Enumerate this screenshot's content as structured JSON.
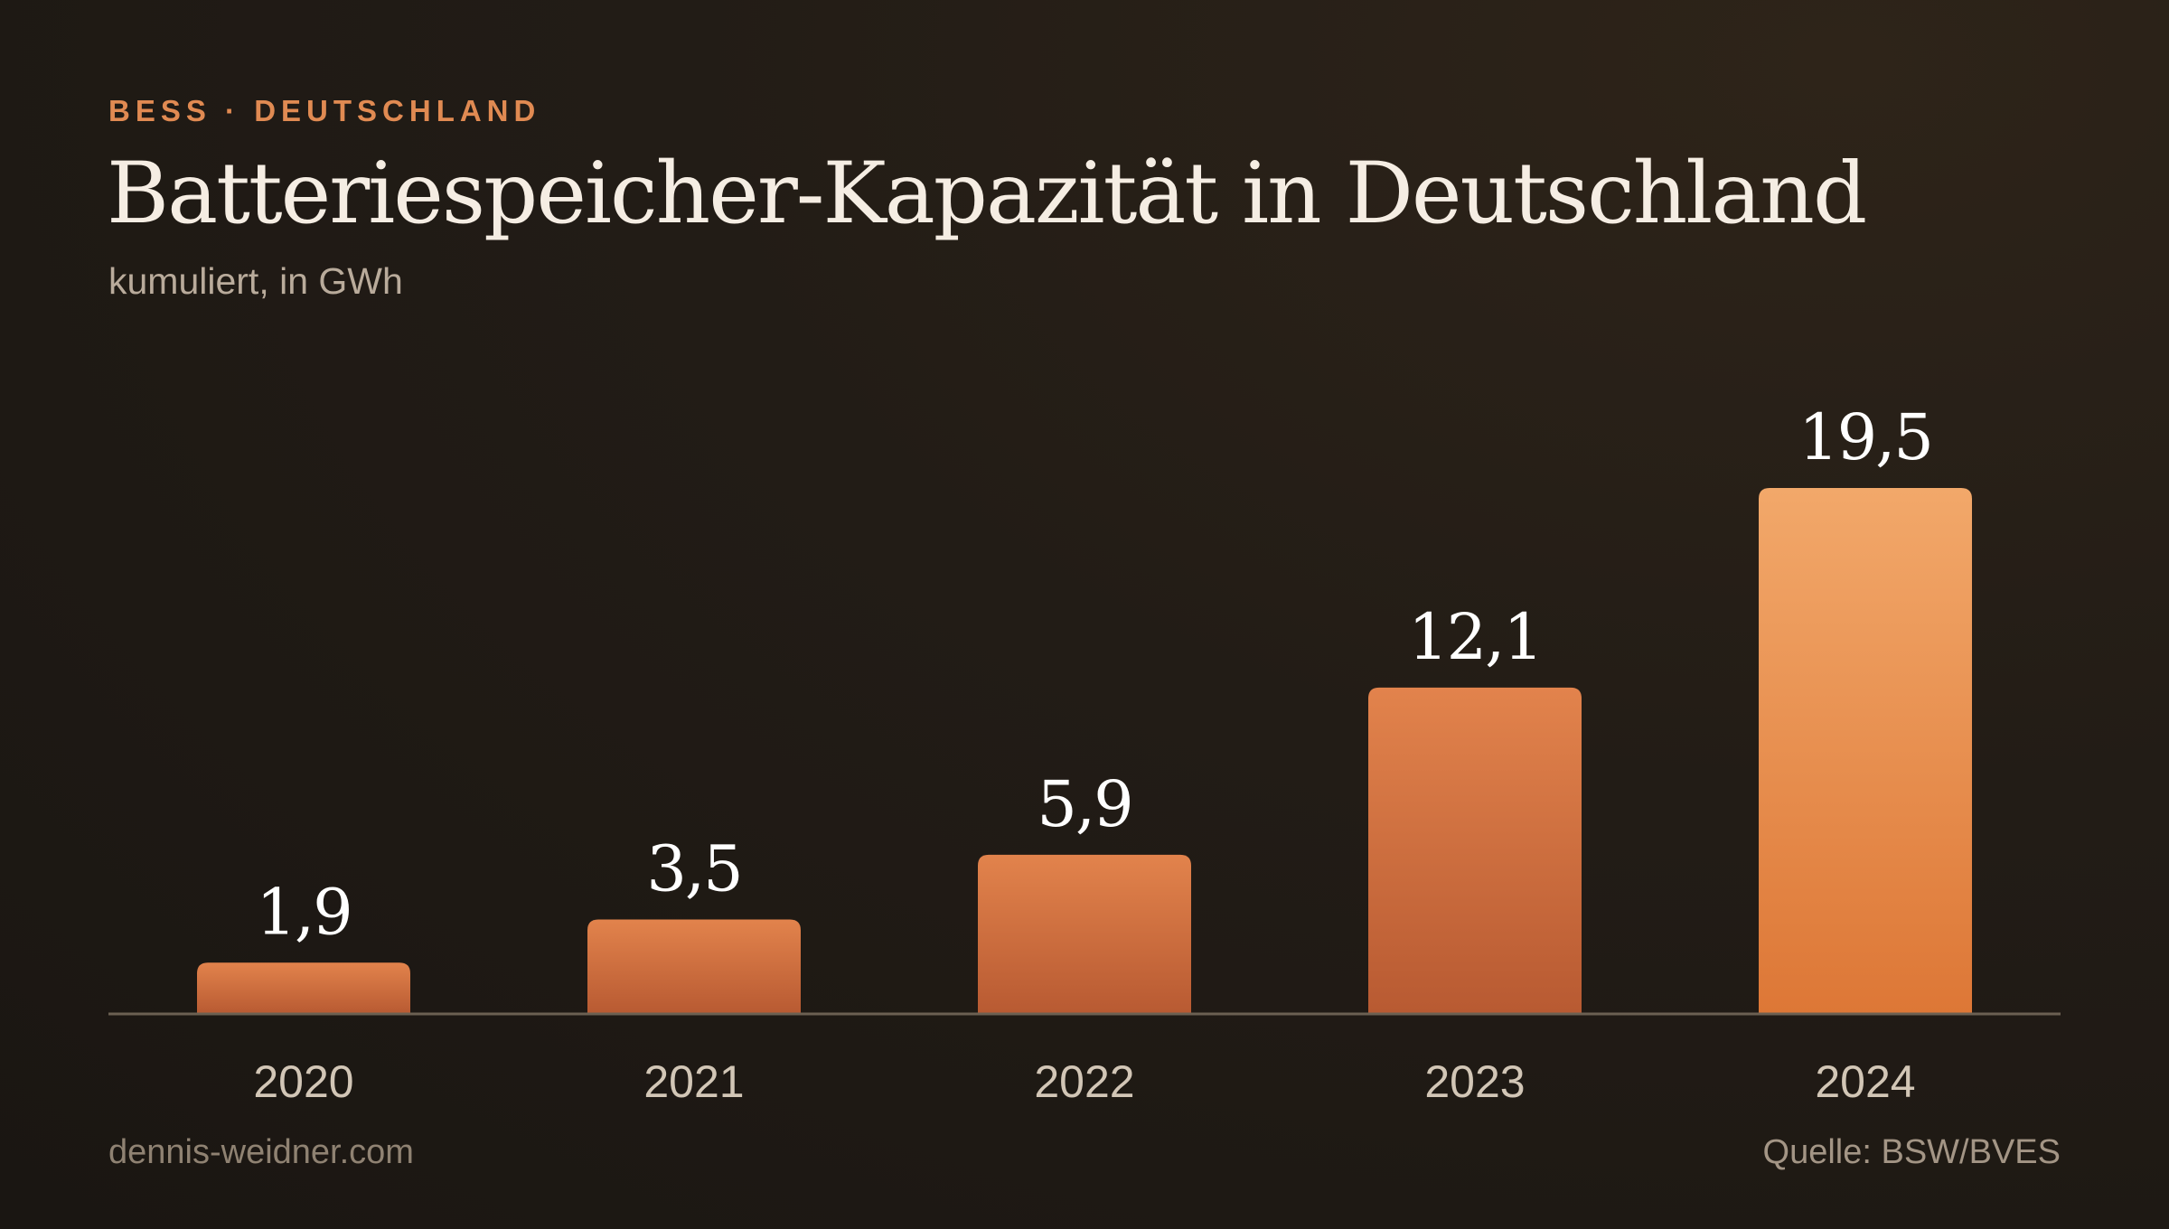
{
  "header": {
    "eyebrow": "BESS · DEUTSCHLAND",
    "title": "Batteriespeicher-Kapazität in Deutschland",
    "subtitle": "kumuliert, in GWh"
  },
  "footer": {
    "site": "dennis-weidner.com",
    "source": "Quelle: BSW/BVES"
  },
  "colors": {
    "bar_top": "#e2834c",
    "bar_bottom": "#b85a32",
    "highlight_top": "#f2a86a",
    "highlight_bottom": "#dd7736",
    "value_label": "#ffffff",
    "category_label": "#d2c6b6",
    "baseline": "#6b6052"
  },
  "chart_data": {
    "type": "bar",
    "categories": [
      "2020",
      "2021",
      "2022",
      "2023",
      "2024"
    ],
    "values": [
      1.9,
      3.5,
      5.9,
      12.1,
      19.5
    ],
    "value_labels": [
      "1,9",
      "3,5",
      "5,9",
      "12,1",
      "19,5"
    ],
    "title": "Batteriespeicher-Kapazität in Deutschland",
    "subtitle": "kumuliert, in GWh",
    "ylim": [
      0,
      19.5
    ],
    "highlight_category": "2024",
    "grid": false,
    "legend": "none"
  }
}
